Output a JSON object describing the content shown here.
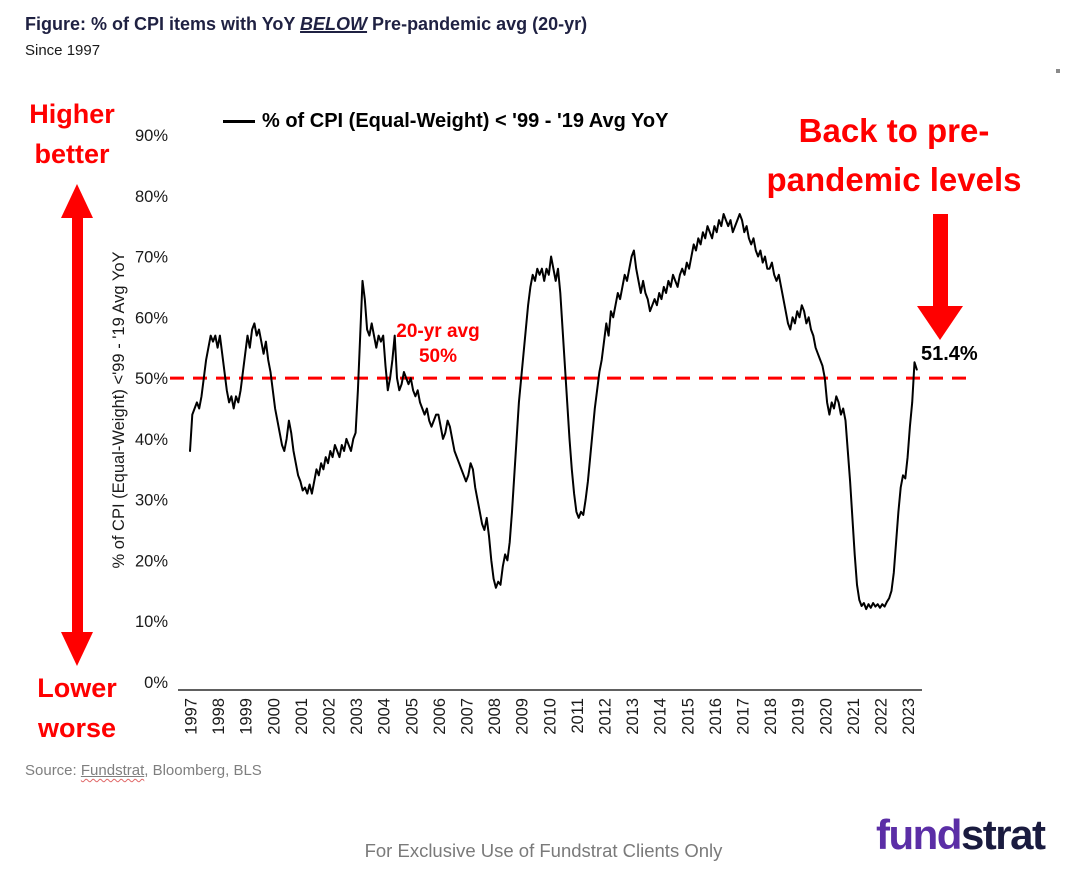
{
  "header": {
    "title_prefix": "Figure: % of CPI items with YoY ",
    "title_emphasis": "BELOW",
    "title_suffix": " Pre-pandemic avg (20-yr)",
    "subtitle": "Since 1997"
  },
  "annotations": {
    "higher_line1": "Higher",
    "higher_line2": "better",
    "lower_line1": "Lower",
    "lower_line2": "worse",
    "back_line1": "Back to pre-",
    "back_line2": "pandemic levels",
    "avg_line1": "20-yr avg",
    "avg_line2": "50%",
    "last_value_label": "51.4%"
  },
  "legend": {
    "label": "% of CPI (Equal-Weight)  < '99 - '19 Avg YoY"
  },
  "footer": {
    "source_prefix": "Source: ",
    "source_link": "Fundstrat",
    "source_suffix": ", Bloomberg, BLS",
    "disclaimer": "For Exclusive Use of Fundstrat Clients Only",
    "logo_part1": "fund",
    "logo_part2": "strat"
  },
  "colors": {
    "accent_red": "#FF0000",
    "series_line": "#000000",
    "title_navy": "#1F2142",
    "gray_text": "#7F7F7F",
    "logo_purple": "#5B2EA6",
    "logo_navy": "#1A1B3F"
  },
  "chart_data": {
    "type": "line",
    "title": "Figure: % of CPI items with YoY BELOW Pre-pandemic avg (20-yr)",
    "subtitle": "Since 1997",
    "ylabel": "% of CPI (Equal-Weight)  <'99 - '19 Avg YoY",
    "xlabel": "",
    "ylim": [
      0,
      90
    ],
    "yticks": [
      "90%",
      "80%",
      "70%",
      "60%",
      "50%",
      "40%",
      "30%",
      "20%",
      "10%",
      "0%"
    ],
    "x_labels": [
      "1997",
      "1998",
      "1999",
      "2000",
      "2001",
      "2002",
      "2003",
      "2004",
      "2005",
      "2006",
      "2007",
      "2008",
      "2009",
      "2010",
      "2011",
      "2012",
      "2013",
      "2014",
      "2015",
      "2016",
      "2017",
      "2018",
      "2019",
      "2020",
      "2021",
      "2022",
      "2023"
    ],
    "frequency": "monthly",
    "x_start_year": 1997,
    "grid": false,
    "legend_position": "top",
    "avg_line": {
      "value": 50,
      "label": "20-yr avg 50%",
      "style": "dashed",
      "color": "#FF0000"
    },
    "last_point_label": "51.4%",
    "series": [
      {
        "name": "% of CPI (Equal-Weight) < '99 - '19 Avg YoY",
        "color": "#000000",
        "values": [
          38,
          44,
          45,
          46,
          45,
          47,
          50,
          53,
          55,
          57,
          56,
          57,
          55,
          57,
          54,
          51,
          48,
          46,
          47,
          45,
          47,
          46,
          48,
          51,
          54,
          57,
          55,
          58,
          59,
          57,
          58,
          56,
          54,
          56,
          53,
          51,
          48,
          45,
          43,
          41,
          39,
          38,
          40,
          43,
          41,
          38,
          36,
          34,
          33,
          31.5,
          32,
          31,
          32.5,
          31,
          33,
          35,
          34,
          36,
          35,
          37,
          36,
          38,
          37,
          39,
          38,
          37,
          39,
          38,
          40,
          39,
          38,
          40,
          41,
          48,
          57,
          66,
          63,
          58,
          57,
          59,
          57,
          55,
          57,
          56,
          57,
          52,
          48,
          50,
          53,
          57,
          50,
          48,
          49,
          51,
          50,
          49,
          50,
          48,
          47,
          48,
          46,
          45,
          44,
          45,
          43,
          42,
          43,
          44,
          44,
          42,
          40,
          41,
          43,
          42,
          40,
          38,
          37,
          36,
          35,
          34,
          33,
          34,
          36,
          35,
          32,
          30,
          28,
          26,
          25,
          27,
          24,
          20,
          17,
          15.5,
          16.5,
          16,
          19,
          21,
          20,
          23,
          28,
          34,
          40,
          46,
          50,
          54,
          58,
          62,
          65,
          67,
          66,
          68,
          67,
          68,
          66,
          68,
          67,
          70,
          68,
          66,
          68,
          64,
          58,
          52,
          46,
          40,
          35,
          31,
          28,
          27,
          28,
          27.5,
          30,
          33,
          37,
          41,
          45,
          48,
          51,
          53,
          56,
          59,
          57,
          61,
          60,
          62,
          64,
          63,
          65,
          67,
          66,
          68,
          70,
          71,
          68,
          66,
          64,
          66,
          64,
          63,
          61,
          62,
          63,
          62,
          64,
          63,
          65,
          64,
          66,
          65,
          67,
          66,
          65,
          67,
          68,
          67,
          69,
          68,
          70,
          72,
          71,
          73,
          72,
          74,
          73,
          75,
          74,
          73,
          75,
          74,
          76,
          75,
          77,
          76,
          75,
          76,
          74,
          75,
          76,
          77,
          76,
          74,
          75,
          73,
          72,
          73,
          71,
          70,
          71,
          69,
          70,
          68,
          68,
          69,
          67,
          66,
          67,
          65,
          63,
          61,
          59,
          58,
          60,
          59,
          61,
          60,
          62,
          61,
          59,
          60,
          58,
          57,
          55,
          54,
          53,
          52,
          50,
          46,
          44,
          46,
          45,
          47,
          46,
          44,
          45,
          43,
          38,
          33,
          27,
          21,
          16,
          13.5,
          12.5,
          13,
          12,
          12.8,
          12.2,
          13,
          12.4,
          12.8,
          12.2,
          12.8,
          12.4,
          13.2,
          13.8,
          15,
          18,
          23,
          28,
          32,
          34,
          33.5,
          37,
          42,
          46,
          52.6,
          51.4
        ]
      }
    ]
  }
}
